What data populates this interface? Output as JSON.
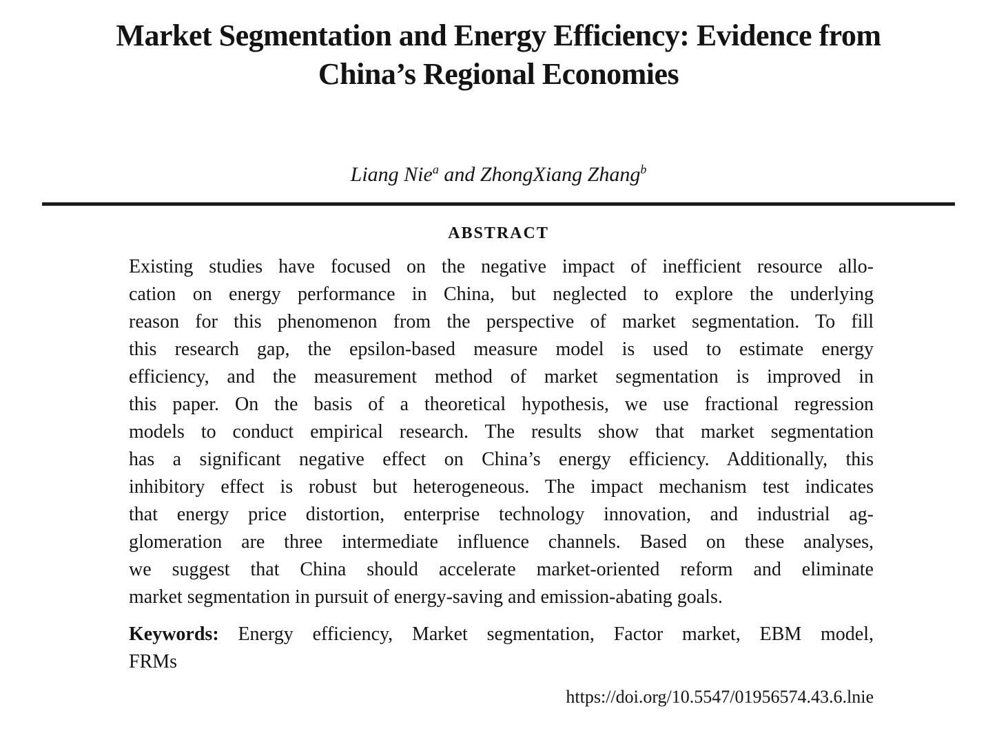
{
  "paper": {
    "title_line1": "Market Segmentation and Energy Efficiency: Evidence from",
    "title_line2": "China’s Regional Economies",
    "authors": {
      "name1": "Liang Nie",
      "mark1": "a",
      "connector": " and ",
      "name2": "ZhongXiang Zhang",
      "mark2": "b"
    },
    "abstract": {
      "heading": "ABSTRACT",
      "lines": [
        "Existing studies have focused on the negative impact of inefficient resource allo-",
        "cation on energy performance in China, but neglected to explore the underlying",
        "reason for this phenomenon from the perspective of market segmentation. To fill",
        "this research gap, the epsilon-based measure model is used to estimate energy",
        "efficiency, and the measurement method of market segmentation is improved in",
        "this paper. On the basis of a theoretical hypothesis, we use fractional regression",
        "models to conduct empirical research. The results show that market segmentation",
        "has a significant negative effect on China’s energy efficiency. Additionally, this",
        "inhibitory effect is robust but heterogeneous. The impact mechanism test indicates",
        "that energy price distortion, enterprise technology innovation, and industrial ag-",
        "glomeration are three intermediate influence channels. Based on these analyses,",
        "we suggest that China should accelerate market-oriented reform and eliminate",
        "market segmentation in pursuit of energy-saving and emission-abating goals."
      ]
    },
    "keywords": {
      "label": "Keywords:",
      "line1": "Energy efficiency, Market segmentation, Factor market, EBM model,",
      "line2": "FRMs"
    },
    "doi": "https://doi.org/10.5547/01956574.43.6.lnie"
  },
  "colors": {
    "background": "#ffffff",
    "text": "#141414",
    "rule": "#1c1c1c"
  }
}
